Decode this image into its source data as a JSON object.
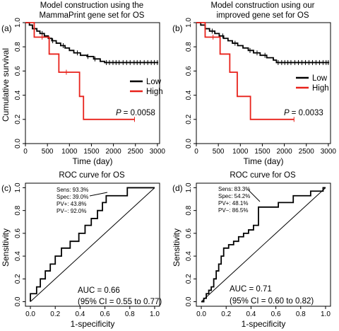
{
  "chart_data": [
    {
      "panel": "(a)",
      "type": "line",
      "title": [
        "Model construction using the",
        "MammaPrint gene set for OS"
      ],
      "xlabel": "Time (day)",
      "ylabel": "Cumulative survival",
      "xlim": [
        0,
        3050
      ],
      "ylim": [
        0,
        1.0
      ],
      "xticks": [
        0,
        500,
        1000,
        1500,
        2000,
        2500,
        3000
      ],
      "yticks": [
        0.0,
        0.2,
        0.4,
        0.6,
        0.8,
        1.0
      ],
      "legend": {
        "position": "right",
        "entries": [
          "Low",
          "High"
        ]
      },
      "annotation": {
        "p_label": "P",
        "p_value": "= 0.0058"
      },
      "series": [
        {
          "name": "Low",
          "color": "#000000",
          "steps": [
            [
              0,
              1.0
            ],
            [
              90,
              0.98
            ],
            [
              160,
              0.95
            ],
            [
              260,
              0.93
            ],
            [
              330,
              0.91
            ],
            [
              430,
              0.89
            ],
            [
              520,
              0.87
            ],
            [
              600,
              0.85
            ],
            [
              700,
              0.83
            ],
            [
              800,
              0.81
            ],
            [
              900,
              0.79
            ],
            [
              1000,
              0.77
            ],
            [
              1100,
              0.75
            ],
            [
              1250,
              0.73
            ],
            [
              1400,
              0.72
            ],
            [
              1550,
              0.7
            ],
            [
              1700,
              0.68
            ],
            [
              1800,
              0.67
            ],
            [
              3020,
              0.67
            ]
          ],
          "censor": [
            380,
            620,
            860,
            1180,
            1420,
            1580,
            1840,
            1910,
            1990,
            2060,
            2130,
            2220,
            2300,
            2380,
            2470,
            2540,
            2610,
            2700,
            2780,
            2860,
            2930,
            3000
          ]
        },
        {
          "name": "High",
          "color": "#e8221b",
          "steps": [
            [
              0,
              1.0
            ],
            [
              200,
              0.88
            ],
            [
              540,
              0.74
            ],
            [
              760,
              0.59
            ],
            [
              1230,
              0.39
            ],
            [
              1320,
              0.2
            ],
            [
              2480,
              0.2
            ]
          ],
          "censor": [
            380,
            930,
            2480
          ]
        }
      ]
    },
    {
      "panel": "(b)",
      "type": "line",
      "title": [
        "Model construction using our",
        "improved gene set for OS"
      ],
      "xlabel": "Time (day)",
      "ylabel": "",
      "xlim": [
        0,
        3050
      ],
      "ylim": [
        0,
        1.0
      ],
      "xticks": [
        0,
        500,
        1000,
        1500,
        2000,
        2500,
        3000
      ],
      "yticks": [
        0.0,
        0.2,
        0.4,
        0.6,
        0.8,
        1.0
      ],
      "legend": {
        "position": "right",
        "entries": [
          "Low",
          "High"
        ]
      },
      "annotation": {
        "p_label": "P",
        "p_value": "= 0.0033"
      },
      "series": [
        {
          "name": "Low",
          "color": "#000000",
          "steps": [
            [
              0,
              1.0
            ],
            [
              100,
              0.98
            ],
            [
              200,
              0.95
            ],
            [
              300,
              0.93
            ],
            [
              420,
              0.91
            ],
            [
              520,
              0.89
            ],
            [
              620,
              0.87
            ],
            [
              720,
              0.85
            ],
            [
              820,
              0.83
            ],
            [
              940,
              0.81
            ],
            [
              1060,
              0.79
            ],
            [
              1180,
              0.77
            ],
            [
              1300,
              0.75
            ],
            [
              1450,
              0.73
            ],
            [
              1600,
              0.71
            ],
            [
              1750,
              0.69
            ],
            [
              1820,
              0.67
            ],
            [
              3020,
              0.67
            ]
          ],
          "censor": [
            360,
            600,
            880,
            1220,
            1380,
            1560,
            1860,
            1940,
            2010,
            2080,
            2150,
            2240,
            2320,
            2400,
            2480,
            2560,
            2640,
            2720,
            2800,
            2880,
            2950,
            3000
          ]
        },
        {
          "name": "High",
          "color": "#e8221b",
          "steps": [
            [
              0,
              1.0
            ],
            [
              200,
              0.88
            ],
            [
              540,
              0.74
            ],
            [
              760,
              0.59
            ],
            [
              930,
              0.39
            ],
            [
              1230,
              0.2
            ],
            [
              2220,
              0.2
            ]
          ],
          "censor": [
            380,
            2220
          ]
        }
      ]
    },
    {
      "panel": "(c)",
      "type": "line",
      "title": "ROC curve for OS",
      "xlabel": "1-specificity",
      "ylabel": "Sensitivity",
      "xlim": [
        -0.04,
        1.04
      ],
      "ylim": [
        -0.04,
        1.04
      ],
      "xticks": [
        0.0,
        0.2,
        0.4,
        0.6,
        0.8,
        1.0
      ],
      "yticks": [
        0.0,
        0.2,
        0.4,
        0.6,
        0.8,
        1.0
      ],
      "stats": [
        "Sens: 93.3%",
        "Spec: 39.0%",
        "PV+: 43.8%",
        "PV−: 92.0%"
      ],
      "auc": "AUC = 0.66",
      "ci": "(95% CI = 0.55 to 0.77)",
      "series": [
        {
          "name": "",
          "color": "#000000",
          "points": [
            [
              0,
              0
            ],
            [
              0,
              0.07
            ],
            [
              0.05,
              0.07
            ],
            [
              0.05,
              0.13
            ],
            [
              0.08,
              0.13
            ],
            [
              0.08,
              0.2
            ],
            [
              0.12,
              0.2
            ],
            [
              0.12,
              0.27
            ],
            [
              0.16,
              0.27
            ],
            [
              0.16,
              0.33
            ],
            [
              0.2,
              0.33
            ],
            [
              0.2,
              0.4
            ],
            [
              0.25,
              0.4
            ],
            [
              0.25,
              0.47
            ],
            [
              0.32,
              0.47
            ],
            [
              0.32,
              0.53
            ],
            [
              0.39,
              0.53
            ],
            [
              0.39,
              0.6
            ],
            [
              0.44,
              0.6
            ],
            [
              0.44,
              0.67
            ],
            [
              0.49,
              0.67
            ],
            [
              0.49,
              0.73
            ],
            [
              0.54,
              0.73
            ],
            [
              0.54,
              0.8
            ],
            [
              0.58,
              0.8
            ],
            [
              0.58,
              0.87
            ],
            [
              0.61,
              0.87
            ],
            [
              0.61,
              0.93
            ],
            [
              0.78,
              0.93
            ],
            [
              0.78,
              1.0
            ],
            [
              1.0,
              1.0
            ]
          ]
        },
        {
          "name": "",
          "color": "#000000",
          "points": [
            [
              0,
              0
            ],
            [
              1,
              1
            ]
          ]
        }
      ]
    },
    {
      "panel": "(d)",
      "type": "line",
      "title": "ROC curve for OS",
      "xlabel": "1-specificity",
      "ylabel": "Sensitivity",
      "xlim": [
        -0.04,
        1.04
      ],
      "ylim": [
        -0.04,
        1.04
      ],
      "xticks": [
        0.0,
        0.2,
        0.4,
        0.6,
        0.8,
        1.0
      ],
      "yticks": [
        0.0,
        0.2,
        0.4,
        0.6,
        0.8,
        1.0
      ],
      "stats": [
        "Sens: 83.3%",
        "Spec: 54.2%",
        "PV+: 48.1%",
        "PV−: 86.5%"
      ],
      "auc": "AUC = 0.71",
      "ci": "(95% CI = 0.60 to 0.82)",
      "series": [
        {
          "name": "",
          "color": "#000000",
          "points": [
            [
              0,
              0
            ],
            [
              0.02,
              0
            ],
            [
              0.02,
              0.03
            ],
            [
              0.04,
              0.03
            ],
            [
              0.04,
              0.07
            ],
            [
              0.06,
              0.07
            ],
            [
              0.06,
              0.1
            ],
            [
              0.08,
              0.1
            ],
            [
              0.08,
              0.13
            ],
            [
              0.1,
              0.13
            ],
            [
              0.1,
              0.2
            ],
            [
              0.12,
              0.2
            ],
            [
              0.12,
              0.27
            ],
            [
              0.14,
              0.27
            ],
            [
              0.14,
              0.33
            ],
            [
              0.16,
              0.33
            ],
            [
              0.16,
              0.4
            ],
            [
              0.18,
              0.4
            ],
            [
              0.18,
              0.47
            ],
            [
              0.22,
              0.47
            ],
            [
              0.22,
              0.5
            ],
            [
              0.26,
              0.5
            ],
            [
              0.26,
              0.53
            ],
            [
              0.3,
              0.53
            ],
            [
              0.3,
              0.57
            ],
            [
              0.34,
              0.57
            ],
            [
              0.34,
              0.6
            ],
            [
              0.38,
              0.6
            ],
            [
              0.38,
              0.63
            ],
            [
              0.42,
              0.63
            ],
            [
              0.42,
              0.67
            ],
            [
              0.46,
              0.67
            ],
            [
              0.46,
              0.83
            ],
            [
              0.62,
              0.83
            ],
            [
              0.62,
              0.87
            ],
            [
              0.74,
              0.87
            ],
            [
              0.74,
              0.93
            ],
            [
              0.88,
              0.93
            ],
            [
              0.88,
              0.97
            ],
            [
              0.98,
              0.97
            ],
            [
              0.98,
              1.0
            ],
            [
              1.0,
              1.0
            ]
          ]
        },
        {
          "name": "",
          "color": "#000000",
          "points": [
            [
              0,
              0
            ],
            [
              1,
              1
            ]
          ]
        }
      ]
    }
  ]
}
